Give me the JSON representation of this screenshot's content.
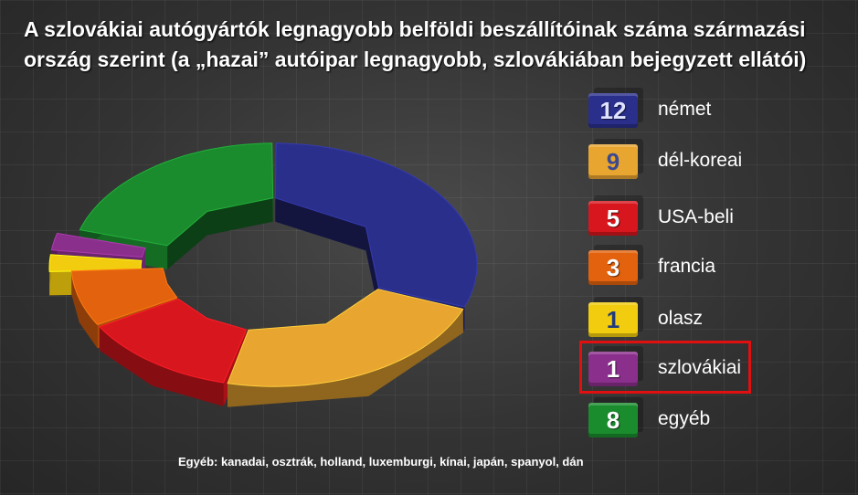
{
  "title": "A szlovákiai autógyártók  legnagyobb belföldi beszállítóinak száma  származási ország szerint (a „hazai” autóipar legnagyobb, szlovákiában bejegyzett ellátói)",
  "title_line1": "A szlovákiai autógyártók  legnagyobb belföldi beszállítóinak száma  származási",
  "title_line2": "ország szerint (a „hazai” autóipar legnagyobb, szlovákiában bejegyzett ellátói)",
  "footnote": "Egyéb: kanadai, osztrák, holland, luxemburgi, kínai, japán, spanyol, dán",
  "highlighted_category": "szlovákiai",
  "chart_data": {
    "type": "pie",
    "variant": "3d-donut",
    "categories": [
      "német",
      "dél-koreai",
      "USA-beli",
      "francia",
      "olasz",
      "szlovákiai",
      "egyéb"
    ],
    "values": [
      12,
      9,
      5,
      3,
      1,
      1,
      8
    ],
    "value_labels": [
      "12",
      "9",
      "5",
      "3",
      "1",
      "1",
      "8"
    ],
    "colors": [
      "#2a2f8c",
      "#e8a530",
      "#d8161e",
      "#e2620e",
      "#f2cc0e",
      "#8b2f8c",
      "#1b8c2e"
    ],
    "exploded": [
      "olasz",
      "szlovákiai"
    ],
    "legend_position": "right"
  }
}
